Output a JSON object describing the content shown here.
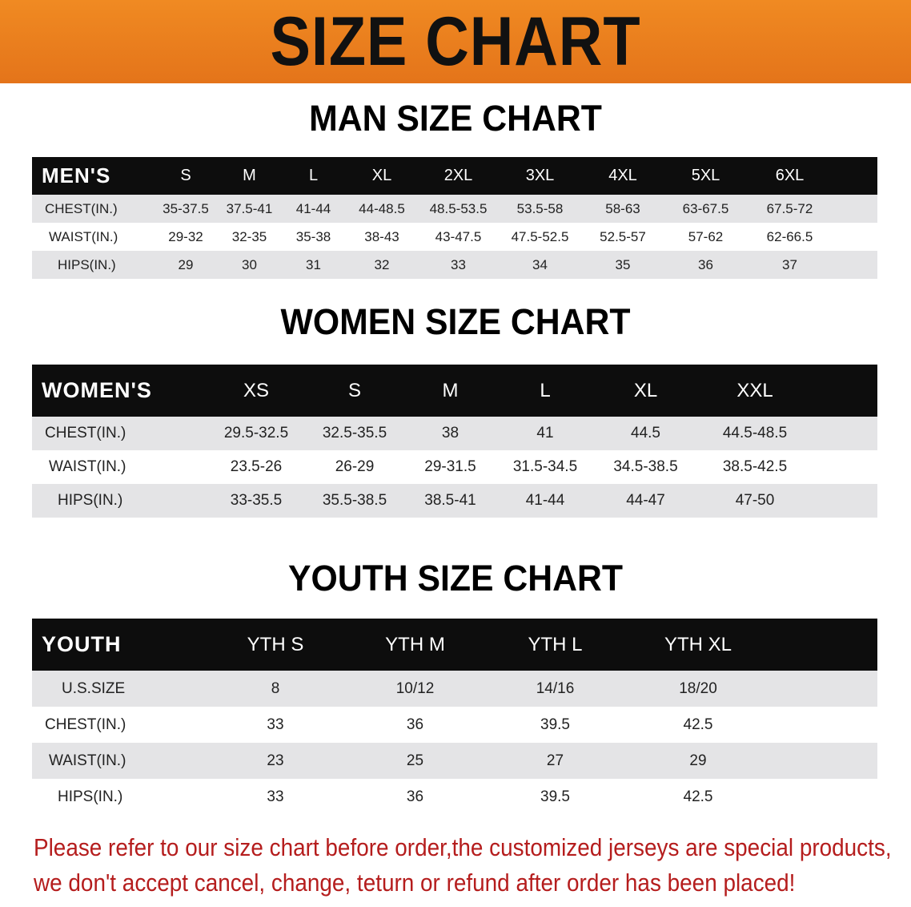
{
  "banner": "SIZE CHART",
  "men": {
    "title": "MAN SIZE CHART",
    "header": "MEN'S",
    "sizes": [
      "S",
      "M",
      "L",
      "XL",
      "2XL",
      "3XL",
      "4XL",
      "5XL",
      "6XL"
    ],
    "rows": [
      {
        "label": "CHEST(IN.)",
        "values": [
          "35-37.5",
          "37.5-41",
          "41-44",
          "44-48.5",
          "48.5-53.5",
          "53.5-58",
          "58-63",
          "63-67.5",
          "67.5-72"
        ]
      },
      {
        "label": "WAIST(IN.)",
        "values": [
          "29-32",
          "32-35",
          "35-38",
          "38-43",
          "43-47.5",
          "47.5-52.5",
          "52.5-57",
          "57-62",
          "62-66.5"
        ]
      },
      {
        "label": "HIPS(IN.)",
        "values": [
          "29",
          "30",
          "31",
          "32",
          "33",
          "34",
          "35",
          "36",
          "37"
        ]
      }
    ]
  },
  "women": {
    "title": "WOMEN SIZE CHART",
    "header": "WOMEN'S",
    "sizes": [
      "XS",
      "S",
      "M",
      "L",
      "XL",
      "XXL"
    ],
    "rows": [
      {
        "label": "CHEST(IN.)",
        "values": [
          "29.5-32.5",
          "32.5-35.5",
          "38",
          "41",
          "44.5",
          "44.5-48.5"
        ]
      },
      {
        "label": "WAIST(IN.)",
        "values": [
          "23.5-26",
          "26-29",
          "29-31.5",
          "31.5-34.5",
          "34.5-38.5",
          "38.5-42.5"
        ]
      },
      {
        "label": "HIPS(IN.)",
        "values": [
          "33-35.5",
          "35.5-38.5",
          "38.5-41",
          "41-44",
          "44-47",
          "47-50"
        ]
      }
    ]
  },
  "youth": {
    "title": "YOUTH SIZE CHART",
    "header": "YOUTH",
    "sizes": [
      "YTH S",
      "YTH M",
      "YTH L",
      "YTH XL"
    ],
    "rows": [
      {
        "label": "U.S.SIZE",
        "values": [
          "8",
          "10/12",
          "14/16",
          "18/20"
        ]
      },
      {
        "label": "CHEST(IN.)",
        "values": [
          "33",
          "36",
          "39.5",
          "42.5"
        ]
      },
      {
        "label": "WAIST(IN.)",
        "values": [
          "23",
          "25",
          "27",
          "29"
        ]
      },
      {
        "label": "HIPS(IN.)",
        "values": [
          "33",
          "36",
          "39.5",
          "42.5"
        ]
      }
    ]
  },
  "note": {
    "line1": "Please refer to our size chart before order,the customized jerseys are special products,",
    "line2": "we don't accept cancel, change, teturn or refund after order has been placed!"
  },
  "colors": {
    "banner": "#e87c1c",
    "header_row": "#0d0d0d",
    "stripe": "#e4e4e6",
    "note": "#b51d1d"
  }
}
